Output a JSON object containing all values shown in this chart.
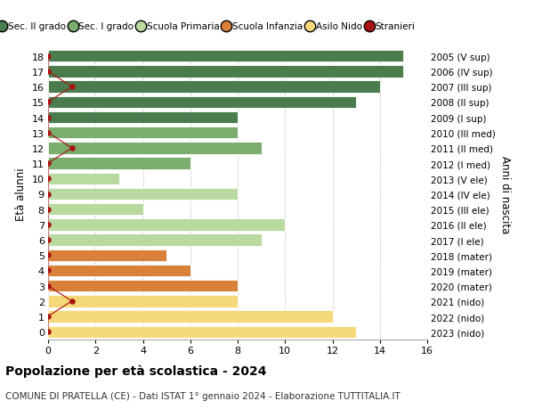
{
  "ages": [
    18,
    17,
    16,
    15,
    14,
    13,
    12,
    11,
    10,
    9,
    8,
    7,
    6,
    5,
    4,
    3,
    2,
    1,
    0
  ],
  "right_labels": [
    "2005 (V sup)",
    "2006 (IV sup)",
    "2007 (III sup)",
    "2008 (II sup)",
    "2009 (I sup)",
    "2010 (III med)",
    "2011 (II med)",
    "2012 (I med)",
    "2013 (V ele)",
    "2014 (IV ele)",
    "2015 (III ele)",
    "2016 (II ele)",
    "2017 (I ele)",
    "2018 (mater)",
    "2019 (mater)",
    "2020 (mater)",
    "2021 (nido)",
    "2022 (nido)",
    "2023 (nido)"
  ],
  "bar_values": [
    15,
    15,
    14,
    13,
    8,
    8,
    9,
    6,
    3,
    8,
    4,
    10,
    9,
    5,
    6,
    8,
    8,
    12,
    13
  ],
  "bar_colors": [
    "#4a7c4e",
    "#4a7c4e",
    "#4a7c4e",
    "#4a7c4e",
    "#4a7c4e",
    "#7aad6e",
    "#7aad6e",
    "#7aad6e",
    "#b8d9a0",
    "#b8d9a0",
    "#b8d9a0",
    "#b8d9a0",
    "#b8d9a0",
    "#d9813a",
    "#d9813a",
    "#d9813a",
    "#f5d87a",
    "#f5d87a",
    "#f5d87a"
  ],
  "stranieri_values": [
    0,
    0,
    1,
    0,
    0,
    0,
    1,
    0,
    0,
    0,
    0,
    0,
    0,
    0,
    0,
    0,
    1,
    0,
    0
  ],
  "stranieri_color": "#aa1111",
  "legend_labels": [
    "Sec. II grado",
    "Sec. I grado",
    "Scuola Primaria",
    "Scuola Infanzia",
    "Asilo Nido",
    "Stranieri"
  ],
  "legend_colors": [
    "#4a7c4e",
    "#7aad6e",
    "#b8d9a0",
    "#d9813a",
    "#f5d87a",
    "#aa1111"
  ],
  "ylabel": "Età alunni",
  "ylabel_right": "Anni di nascita",
  "title": "Popolazione per età scolastica - 2024",
  "subtitle": "COMUNE DI PRATELLA (CE) - Dati ISTAT 1° gennaio 2024 - Elaborazione TUTTITALIA.IT",
  "xlim": [
    0,
    16
  ],
  "xticks": [
    0,
    2,
    4,
    6,
    8,
    10,
    12,
    14,
    16
  ],
  "grid_color": "#cccccc",
  "bar_height": 0.78
}
